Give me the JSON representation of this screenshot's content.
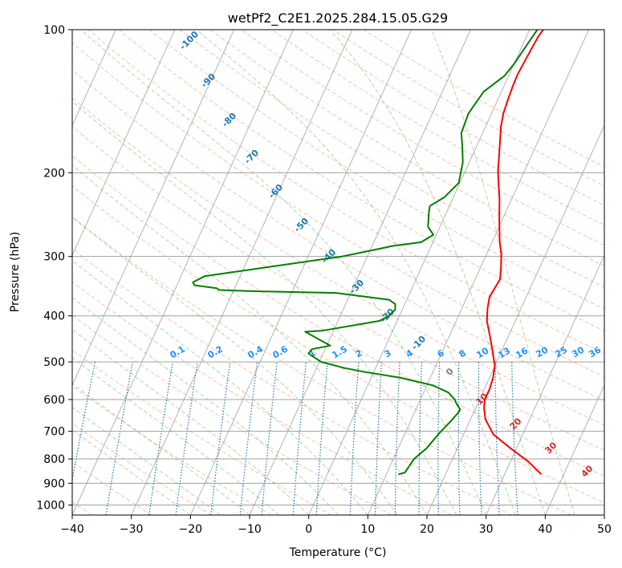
{
  "chart_data": {
    "type": "line",
    "title": "wetPf2_C2E1.2025.284.15.05.G29",
    "xlabel": "Temperature (°C)",
    "ylabel": "Pressure (hPa)",
    "xlim": [
      -40,
      50
    ],
    "ylim": [
      1050,
      100
    ],
    "y_scale": "log",
    "x_ticks": [
      -40,
      -30,
      -20,
      -10,
      0,
      10,
      20,
      30,
      40,
      50
    ],
    "y_ticks": [
      100,
      200,
      300,
      400,
      500,
      600,
      700,
      800,
      900,
      1000
    ],
    "grid": true,
    "colors": {
      "temperature": "#ff0000",
      "dewpoint": "#008000",
      "isotherm": "#808080",
      "dry_adiabat": "#ff7f50",
      "moist_adiabat": "#2ca02c",
      "mixing_ratio": "#1f77b4",
      "label_blue_dark": "#1f77b4",
      "label_blue_light": "#1e90ff",
      "label_red": "#d62728"
    },
    "series": [
      {
        "key": "temperature",
        "x": [
          36.2,
          33,
          29,
          25,
          22.5,
          21.4,
          20.9,
          20.9,
          20.6,
          20,
          18.5,
          16.8,
          15.2,
          14.3,
          13.8,
          14,
          14.2,
          13.4,
          12.5,
          11.3,
          10.2,
          9.1,
          8,
          6.7,
          5.5,
          4.6,
          3.6,
          2.6,
          2,
          1.7,
          1.5,
          1.4,
          1.6,
          1.8,
          2,
          2.3
        ],
        "y": [
          862,
          810,
          760,
          710,
          660,
          625,
          600,
          570,
          540,
          510,
          475,
          440,
          410,
          385,
          365,
          350,
          335,
          315,
          297,
          280,
          262,
          245,
          228,
          212,
          198,
          185,
          172,
          160,
          150,
          140,
          132,
          124,
          116,
          109,
          103,
          100
        ]
      },
      {
        "key": "dewpoint",
        "x": [
          12,
          13,
          13.3,
          13.5,
          14.8,
          15.7,
          16.7,
          17.4,
          17.5,
          16.3,
          15.8,
          14.2,
          11,
          5,
          -1.5,
          -5.3,
          -9.7,
          -12.5,
          -12.2,
          -9.4,
          -11.5,
          -14.7,
          -12,
          -3,
          -1.8,
          -1.2,
          -1.6,
          -3,
          -12.5,
          -26.5,
          -32.5,
          -33,
          -37,
          -37.5,
          -36,
          -14.3,
          -9,
          -6.5,
          -2,
          -0.5,
          -2,
          -3,
          -3.3,
          -1.5,
          -0.2,
          -1.1,
          -2.5,
          -3.6,
          -3.9,
          -3,
          -0.7,
          0,
          0.4,
          0.9,
          1.3
        ],
        "y": [
          862,
          855,
          820,
          800,
          760,
          710,
          670,
          640,
          630,
          610,
          600,
          580,
          560,
          540,
          525,
          515,
          500,
          480,
          470,
          462,
          450,
          432,
          430,
          410,
          400,
          388,
          378,
          370,
          358,
          355,
          353,
          350,
          345,
          340,
          330,
          300,
          290,
          285,
          280,
          270,
          260,
          242,
          235,
          225,
          210,
          190,
          175,
          165,
          150,
          135,
          125,
          118,
          112,
          105,
          100
        ]
      }
    ],
    "isopleth_labels": {
      "dry_adiabats": [
        "-100",
        "-90",
        "-80",
        "-70",
        "-60",
        "-50",
        "-40",
        "-30",
        "-20",
        "-10"
      ],
      "moist_adiabats": [
        "0",
        "10",
        "20",
        "30",
        "40"
      ],
      "mixing_ratios": [
        "0.1",
        "0.2",
        "0.4",
        "0.6",
        "1",
        "1.5",
        "2",
        "3",
        "4",
        "6",
        "8",
        "10",
        "13",
        "16",
        "20",
        "25",
        "30",
        "36"
      ]
    }
  }
}
